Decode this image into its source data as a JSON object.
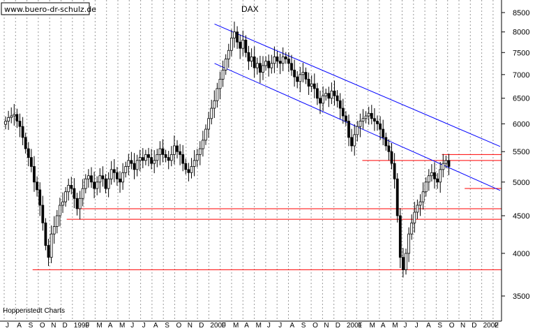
{
  "chart_data": {
    "type": "candlestick",
    "title": "DAX",
    "watermark": "www.buero-dr-schulz.de",
    "source": "Hoppenstedt Charts",
    "scale": "log",
    "ylim": [
      3300,
      8750
    ],
    "y_ticks": [
      3500,
      4000,
      4500,
      5000,
      5500,
      6000,
      6500,
      7000,
      7500,
      8000,
      8500
    ],
    "x_ticks": [
      "J",
      "A",
      "S",
      "O",
      "N",
      "D",
      "1999",
      "F",
      "M",
      "A",
      "M",
      "J",
      "J",
      "A",
      "S",
      "O",
      "N",
      "D",
      "2000",
      "F",
      "M",
      "A",
      "M",
      "J",
      "J",
      "A",
      "S",
      "O",
      "N",
      "D",
      "2001",
      "F",
      "M",
      "A",
      "M",
      "J",
      "J",
      "A",
      "S",
      "O",
      "N",
      "D",
      "2002",
      "F"
    ],
    "grid": "vertical dotted",
    "colors": {
      "candles": "#000000",
      "support": "#ff0000",
      "channel": "#0000ff",
      "background": "#ffffff"
    },
    "weekly_close": [
      6050,
      6120,
      6150,
      6180,
      6050,
      5950,
      5750,
      5550,
      5400,
      5250,
      5000,
      4880,
      4650,
      4400,
      4100,
      3950,
      4250,
      4350,
      4500,
      4650,
      4700,
      4850,
      4950,
      4900,
      4750,
      4600,
      4750,
      4900,
      5050,
      5100,
      5000,
      4900,
      5000,
      5100,
      5050,
      4900,
      5050,
      5200,
      5150,
      5050,
      5000,
      5150,
      5250,
      5350,
      5300,
      5200,
      5350,
      5400,
      5350,
      5450,
      5400,
      5300,
      5350,
      5450,
      5550,
      5450,
      5400,
      5350,
      5450,
      5600,
      5500,
      5450,
      5300,
      5200,
      5150,
      5250,
      5350,
      5450,
      5550,
      5700,
      5900,
      6100,
      6300,
      6450,
      6700,
      6900,
      7100,
      7350,
      7550,
      7850,
      8000,
      7750,
      7600,
      7800,
      7500,
      7300,
      7400,
      7150,
      7250,
      7050,
      7200,
      7300,
      7150,
      7250,
      7400,
      7300,
      7250,
      7400,
      7350,
      7250,
      7100,
      6950,
      6850,
      7000,
      7050,
      6900,
      6750,
      6800,
      6700,
      6500,
      6400,
      6550,
      6600,
      6500,
      6650,
      6550,
      6450,
      6300,
      6150,
      6050,
      5750,
      5600,
      5800,
      5950,
      6050,
      6100,
      6150,
      6200,
      6100,
      6050,
      6000,
      5900,
      5750,
      5600,
      5500,
      5300,
      5050,
      4500,
      3950,
      3800,
      4000,
      4250,
      4400,
      4550,
      4650,
      4700,
      4850,
      5000,
      5100,
      5150,
      5050,
      5000,
      5200,
      5300,
      5350,
      5250
    ],
    "support_lines": [
      {
        "level": 3800,
        "from": "1998-09",
        "to": "2002-02"
      },
      {
        "level": 4450,
        "from": "1998-12",
        "to": "2002-02"
      },
      {
        "level": 4600,
        "from": "1999-01",
        "to": "2002-02"
      },
      {
        "level": 4900,
        "from": "2001-11",
        "to": "2002-02"
      },
      {
        "level": 5350,
        "from": "2001-02",
        "to": "2002-02"
      },
      {
        "level": 5450,
        "from": "2001-09",
        "to": "2002-02"
      }
    ],
    "channel_lines": [
      {
        "from": {
          "date": "2000-01",
          "value": 8200
        },
        "to": {
          "date": "2002-02",
          "value": 5600
        }
      },
      {
        "from": {
          "date": "2000-01",
          "value": 7250
        },
        "to": {
          "date": "2002-02",
          "value": 4880
        }
      }
    ]
  }
}
